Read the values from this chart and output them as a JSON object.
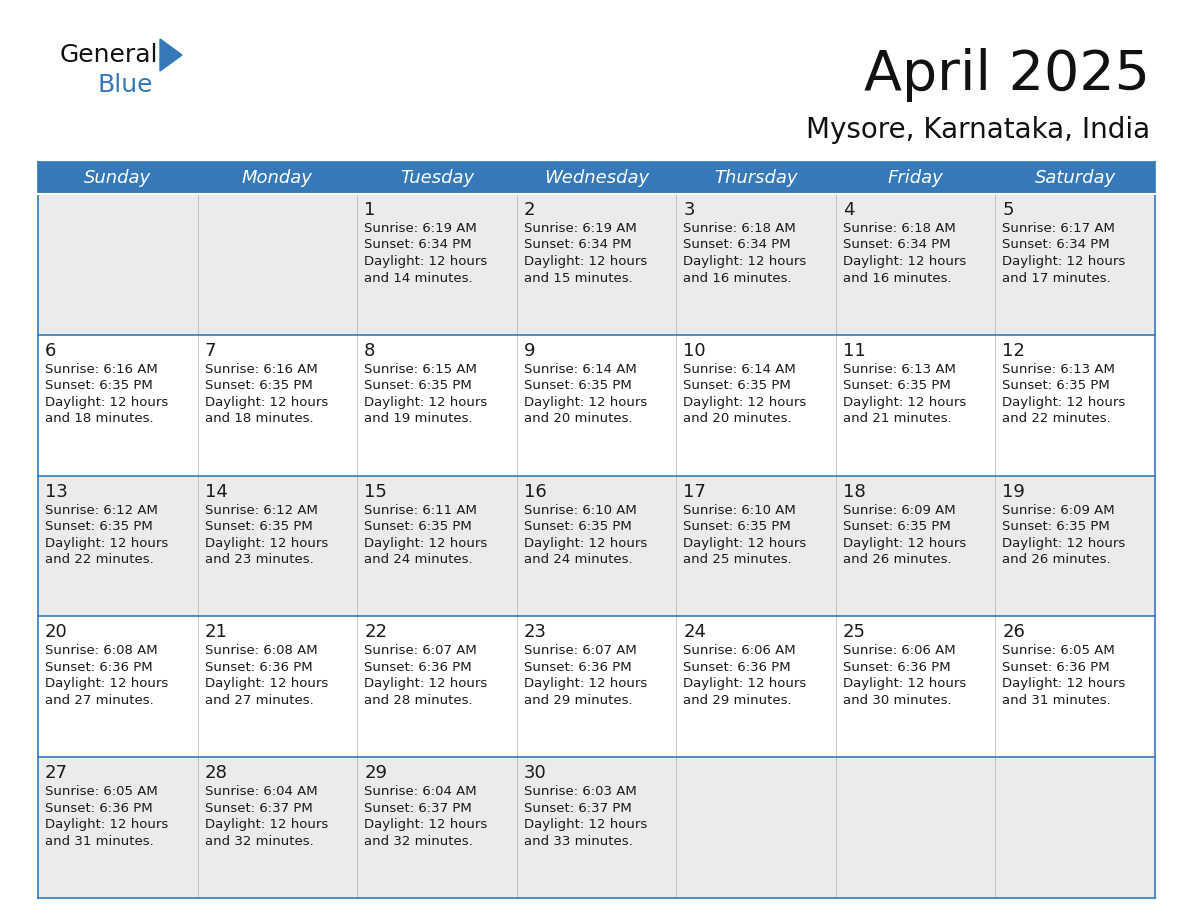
{
  "title": "April 2025",
  "subtitle": "Mysore, Karnataka, India",
  "header_bg": "#3579b8",
  "header_text": "#ffffff",
  "row_bg_odd": "#ebebeb",
  "row_bg_even": "#ffffff",
  "border_color": "#3579b8",
  "text_color": "#1a1a1a",
  "day_headers": [
    "Sunday",
    "Monday",
    "Tuesday",
    "Wednesday",
    "Thursday",
    "Friday",
    "Saturday"
  ],
  "weeks": [
    [
      {
        "day": "",
        "info": ""
      },
      {
        "day": "",
        "info": ""
      },
      {
        "day": "1",
        "info": "Sunrise: 6:19 AM\nSunset: 6:34 PM\nDaylight: 12 hours\nand 14 minutes."
      },
      {
        "day": "2",
        "info": "Sunrise: 6:19 AM\nSunset: 6:34 PM\nDaylight: 12 hours\nand 15 minutes."
      },
      {
        "day": "3",
        "info": "Sunrise: 6:18 AM\nSunset: 6:34 PM\nDaylight: 12 hours\nand 16 minutes."
      },
      {
        "day": "4",
        "info": "Sunrise: 6:18 AM\nSunset: 6:34 PM\nDaylight: 12 hours\nand 16 minutes."
      },
      {
        "day": "5",
        "info": "Sunrise: 6:17 AM\nSunset: 6:34 PM\nDaylight: 12 hours\nand 17 minutes."
      }
    ],
    [
      {
        "day": "6",
        "info": "Sunrise: 6:16 AM\nSunset: 6:35 PM\nDaylight: 12 hours\nand 18 minutes."
      },
      {
        "day": "7",
        "info": "Sunrise: 6:16 AM\nSunset: 6:35 PM\nDaylight: 12 hours\nand 18 minutes."
      },
      {
        "day": "8",
        "info": "Sunrise: 6:15 AM\nSunset: 6:35 PM\nDaylight: 12 hours\nand 19 minutes."
      },
      {
        "day": "9",
        "info": "Sunrise: 6:14 AM\nSunset: 6:35 PM\nDaylight: 12 hours\nand 20 minutes."
      },
      {
        "day": "10",
        "info": "Sunrise: 6:14 AM\nSunset: 6:35 PM\nDaylight: 12 hours\nand 20 minutes."
      },
      {
        "day": "11",
        "info": "Sunrise: 6:13 AM\nSunset: 6:35 PM\nDaylight: 12 hours\nand 21 minutes."
      },
      {
        "day": "12",
        "info": "Sunrise: 6:13 AM\nSunset: 6:35 PM\nDaylight: 12 hours\nand 22 minutes."
      }
    ],
    [
      {
        "day": "13",
        "info": "Sunrise: 6:12 AM\nSunset: 6:35 PM\nDaylight: 12 hours\nand 22 minutes."
      },
      {
        "day": "14",
        "info": "Sunrise: 6:12 AM\nSunset: 6:35 PM\nDaylight: 12 hours\nand 23 minutes."
      },
      {
        "day": "15",
        "info": "Sunrise: 6:11 AM\nSunset: 6:35 PM\nDaylight: 12 hours\nand 24 minutes."
      },
      {
        "day": "16",
        "info": "Sunrise: 6:10 AM\nSunset: 6:35 PM\nDaylight: 12 hours\nand 24 minutes."
      },
      {
        "day": "17",
        "info": "Sunrise: 6:10 AM\nSunset: 6:35 PM\nDaylight: 12 hours\nand 25 minutes."
      },
      {
        "day": "18",
        "info": "Sunrise: 6:09 AM\nSunset: 6:35 PM\nDaylight: 12 hours\nand 26 minutes."
      },
      {
        "day": "19",
        "info": "Sunrise: 6:09 AM\nSunset: 6:35 PM\nDaylight: 12 hours\nand 26 minutes."
      }
    ],
    [
      {
        "day": "20",
        "info": "Sunrise: 6:08 AM\nSunset: 6:36 PM\nDaylight: 12 hours\nand 27 minutes."
      },
      {
        "day": "21",
        "info": "Sunrise: 6:08 AM\nSunset: 6:36 PM\nDaylight: 12 hours\nand 27 minutes."
      },
      {
        "day": "22",
        "info": "Sunrise: 6:07 AM\nSunset: 6:36 PM\nDaylight: 12 hours\nand 28 minutes."
      },
      {
        "day": "23",
        "info": "Sunrise: 6:07 AM\nSunset: 6:36 PM\nDaylight: 12 hours\nand 29 minutes."
      },
      {
        "day": "24",
        "info": "Sunrise: 6:06 AM\nSunset: 6:36 PM\nDaylight: 12 hours\nand 29 minutes."
      },
      {
        "day": "25",
        "info": "Sunrise: 6:06 AM\nSunset: 6:36 PM\nDaylight: 12 hours\nand 30 minutes."
      },
      {
        "day": "26",
        "info": "Sunrise: 6:05 AM\nSunset: 6:36 PM\nDaylight: 12 hours\nand 31 minutes."
      }
    ],
    [
      {
        "day": "27",
        "info": "Sunrise: 6:05 AM\nSunset: 6:36 PM\nDaylight: 12 hours\nand 31 minutes."
      },
      {
        "day": "28",
        "info": "Sunrise: 6:04 AM\nSunset: 6:37 PM\nDaylight: 12 hours\nand 32 minutes."
      },
      {
        "day": "29",
        "info": "Sunrise: 6:04 AM\nSunset: 6:37 PM\nDaylight: 12 hours\nand 32 minutes."
      },
      {
        "day": "30",
        "info": "Sunrise: 6:03 AM\nSunset: 6:37 PM\nDaylight: 12 hours\nand 33 minutes."
      },
      {
        "day": "",
        "info": ""
      },
      {
        "day": "",
        "info": ""
      },
      {
        "day": "",
        "info": ""
      }
    ]
  ],
  "logo_triangle_color": "#3579b8",
  "title_fontsize": 40,
  "subtitle_fontsize": 20,
  "header_fontsize": 13,
  "day_num_fontsize": 13,
  "cell_text_fontsize": 9.5
}
